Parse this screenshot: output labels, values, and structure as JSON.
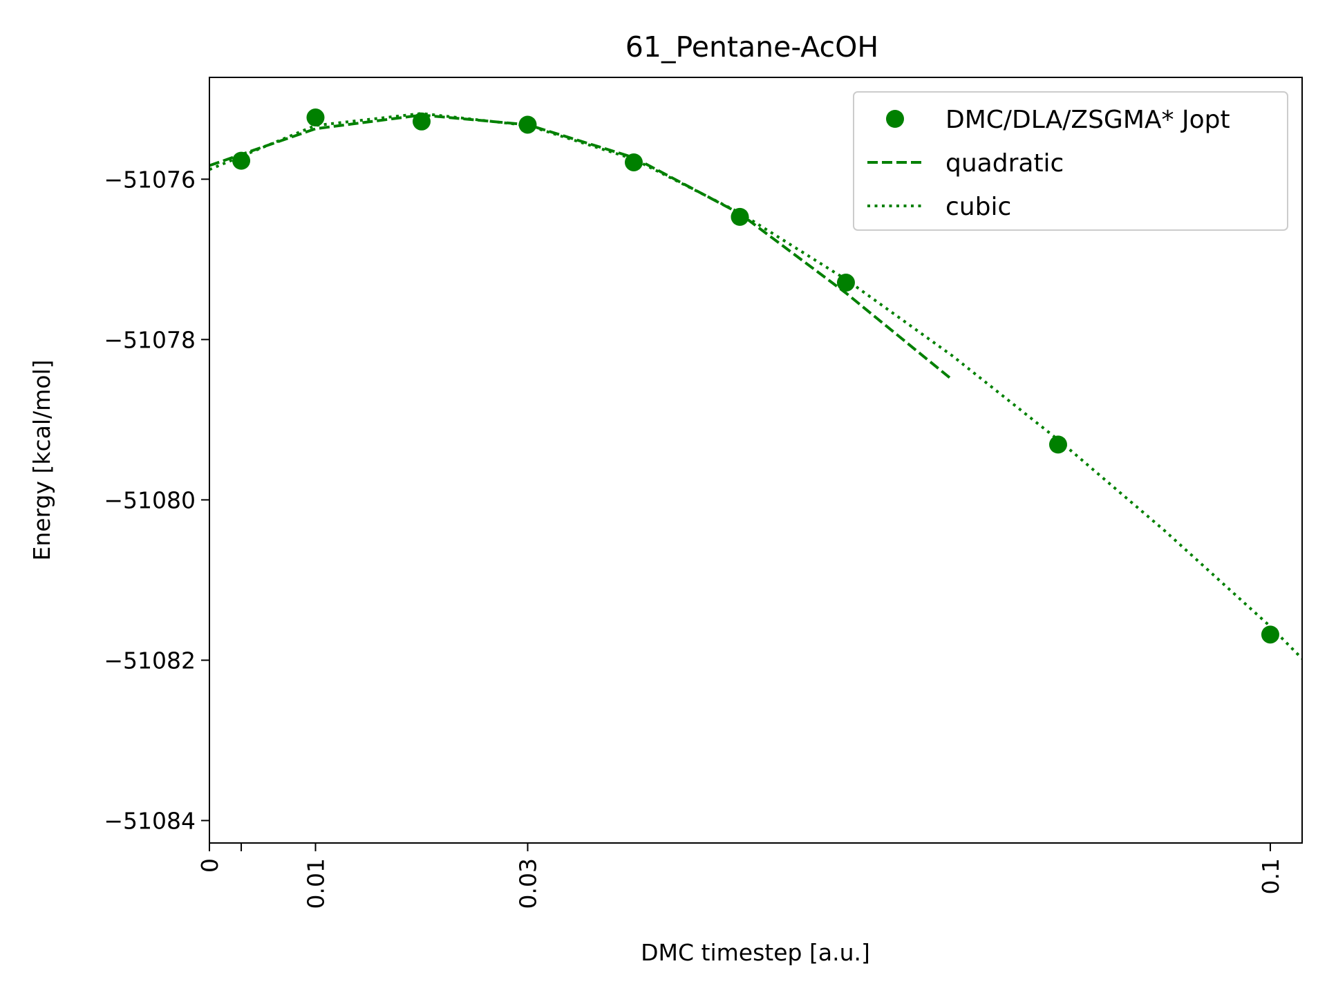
{
  "chart_data": {
    "type": "scatter",
    "title": "61_Pentane-AcOH",
    "xlabel": "DMC timestep [a.u.]",
    "ylabel": "Energy [kcal/mol]",
    "xlim": [
      0,
      0.103
    ],
    "ylim": [
      -51084.28,
      -51074.73
    ],
    "x_ticks": [
      {
        "value": 0,
        "label": "0"
      },
      {
        "value": 0.003,
        "label": ""
      },
      {
        "value": 0.01,
        "label": "0.01"
      },
      {
        "value": 0.03,
        "label": "0.03"
      },
      {
        "value": 0.1,
        "label": "0.1"
      }
    ],
    "y_ticks": [
      {
        "value": -51076,
        "label": "−51076"
      },
      {
        "value": -51078,
        "label": "−51078"
      },
      {
        "value": -51080,
        "label": "−51080"
      },
      {
        "value": -51082,
        "label": "−51082"
      },
      {
        "value": -51084,
        "label": "−51084"
      }
    ],
    "legend_position": "top-right",
    "grid": false,
    "color": "#008000",
    "series": [
      {
        "name": "DMC/DLA/ZSGMA* Jopt",
        "style": "markers",
        "x": [
          0.003,
          0.01,
          0.02,
          0.03,
          0.04,
          0.05,
          0.06,
          0.08,
          0.1
        ],
        "y": [
          -51075.77,
          -51075.23,
          -51075.28,
          -51075.32,
          -51075.79,
          -51076.47,
          -51077.29,
          -51079.31,
          -51081.68
        ]
      },
      {
        "name": "quadratic",
        "style": "dashed",
        "x": [
          0,
          0.01,
          0.02,
          0.03,
          0.04,
          0.05,
          0.06,
          0.07
        ],
        "y": [
          -51075.83,
          -51075.37,
          -51075.2,
          -51075.32,
          -51075.73,
          -51076.43,
          -51077.42,
          -51078.5
        ]
      },
      {
        "name": "cubic",
        "style": "dotted",
        "x": [
          0,
          0.01,
          0.02,
          0.03,
          0.04,
          0.05,
          0.06,
          0.07,
          0.08,
          0.09,
          0.1,
          0.103
        ],
        "y": [
          -51075.88,
          -51075.33,
          -51075.18,
          -51075.33,
          -51075.75,
          -51076.42,
          -51077.25,
          -51078.2,
          -51079.25,
          -51080.38,
          -51081.58,
          -51081.98
        ]
      }
    ]
  }
}
